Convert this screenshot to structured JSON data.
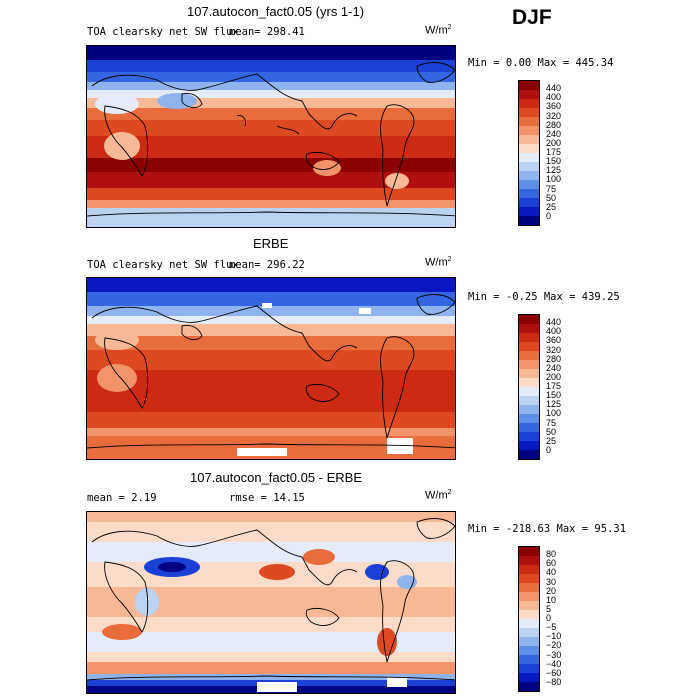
{
  "header": {
    "season": "DJF"
  },
  "panels": [
    {
      "title": "107.autocon_fact0.05 (yrs 1-1)",
      "variable": "TOA clearsky net SW flux",
      "stat": "mean= 298.41",
      "units": "W/m",
      "units_sup": "2",
      "minmax": "Min =   0.00 Max = 445.34",
      "colorbar_labels": [
        "440",
        "400",
        "360",
        "320",
        "280",
        "240",
        "200",
        "175",
        "150",
        "125",
        "100",
        "75",
        "50",
        "25",
        "0"
      ],
      "colorbar_colors": [
        "#8b0000",
        "#b00f0f",
        "#cc2a12",
        "#dd4a22",
        "#e86c3c",
        "#f2946a",
        "#f7b896",
        "#fcdcc8",
        "#e4ecfa",
        "#bcd2f2",
        "#8fb3ec",
        "#5f8fe6",
        "#3366e0",
        "#1a40d6",
        "#0818c0",
        "#000080"
      ]
    },
    {
      "title": "ERBE",
      "variable": "TOA clearsky net SW flux",
      "stat": "mean= 296.22",
      "units": "W/m",
      "units_sup": "2",
      "minmax": "Min =  -0.25 Max = 439.25",
      "colorbar_labels": [
        "440",
        "400",
        "360",
        "320",
        "280",
        "240",
        "200",
        "175",
        "150",
        "125",
        "100",
        "75",
        "50",
        "25",
        "0"
      ],
      "colorbar_colors": [
        "#8b0000",
        "#b00f0f",
        "#cc2a12",
        "#dd4a22",
        "#e86c3c",
        "#f2946a",
        "#f7b896",
        "#fcdcc8",
        "#e4ecfa",
        "#bcd2f2",
        "#8fb3ec",
        "#5f8fe6",
        "#3366e0",
        "#1a40d6",
        "#0818c0",
        "#000080"
      ]
    },
    {
      "title": "107.autocon_fact0.05 - ERBE",
      "stat_mean": "mean =    2.19",
      "stat_rmse": "rmse =   14.15",
      "units": "W/m",
      "units_sup": "2",
      "minmax": "Min = -218.63 Max =  95.31",
      "colorbar_labels": [
        "80",
        "60",
        "40",
        "30",
        "20",
        "10",
        "5",
        "0",
        "−5",
        "−10",
        "−20",
        "−30",
        "−40",
        "−60",
        "−80"
      ],
      "colorbar_colors": [
        "#8b0000",
        "#b00f0f",
        "#cc2a12",
        "#dd4a22",
        "#e86c3c",
        "#f2946a",
        "#f7b896",
        "#fcdcc8",
        "#e4ecfa",
        "#bcd2f2",
        "#8fb3ec",
        "#5f8fe6",
        "#3366e0",
        "#1a40d6",
        "#0818c0",
        "#000080"
      ]
    }
  ]
}
